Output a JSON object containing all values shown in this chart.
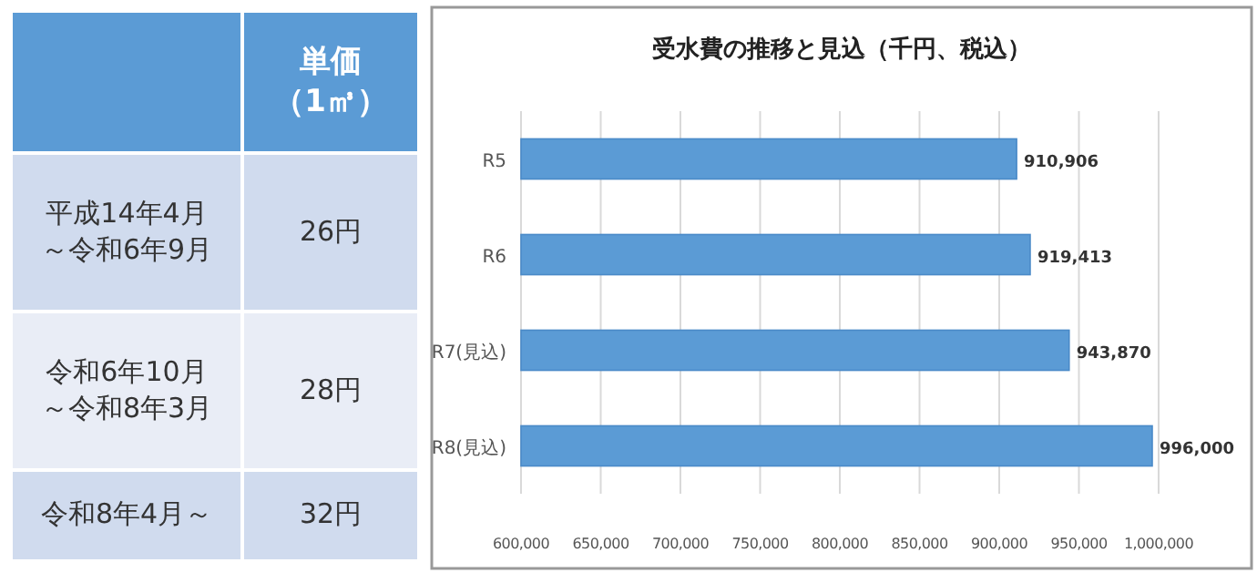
{
  "chart_data": [
    {
      "type": "other",
      "title": "単価",
      "subtitle": "（1㎥）",
      "categories": [
        "平成14年4月～令和6年9月",
        "令和6年10月～令和8年3月",
        "令和8年4月～"
      ],
      "value_labels": [
        "26円",
        "28円",
        "32円"
      ]
    },
    {
      "type": "bar",
      "orientation": "horizontal",
      "title": "受水費の推移と見込（千円、税込）",
      "categories": [
        "R5",
        "R6",
        "R7(見込)",
        "R8(見込)"
      ],
      "values": [
        910906,
        919413,
        943870,
        996000
      ],
      "value_labels": [
        "910,906",
        "919,413",
        "943,870",
        "996,000"
      ],
      "color": "#5b9bd5",
      "xlim": [
        600000,
        1000000
      ],
      "xticks": [
        {
          "value": 600000,
          "label": "600,000"
        },
        {
          "value": 650000,
          "label": "650,000"
        },
        {
          "value": 700000,
          "label": "700,000"
        },
        {
          "value": 750000,
          "label": "750,000"
        },
        {
          "value": 800000,
          "label": "800,000"
        },
        {
          "value": 850000,
          "label": "850,000"
        },
        {
          "value": 900000,
          "label": "900,000"
        },
        {
          "value": 950000,
          "label": "950,000"
        },
        {
          "value": 1000000,
          "label": "1,000,000"
        }
      ],
      "grid": "x"
    }
  ]
}
